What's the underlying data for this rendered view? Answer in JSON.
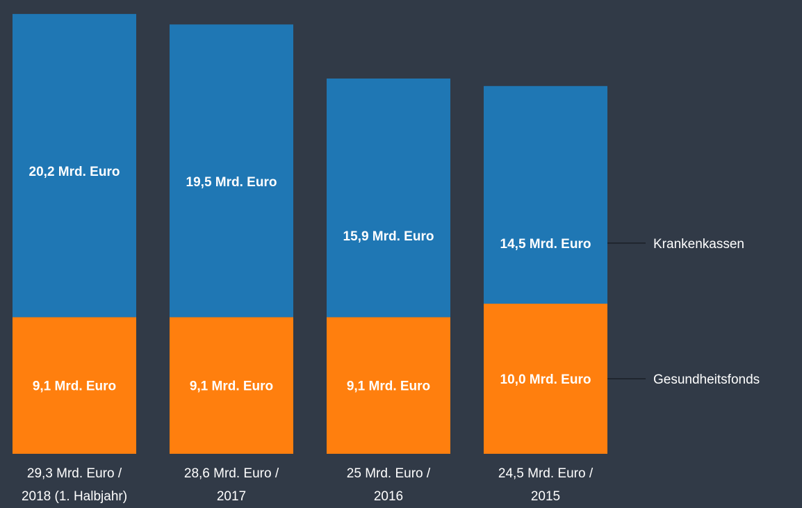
{
  "chart_data": {
    "type": "bar",
    "stacked": true,
    "categories": [
      [
        "29,3 Mrd. Euro /",
        "2018 (1. Halbjahr)"
      ],
      [
        "28,6 Mrd. Euro /",
        "2017"
      ],
      [
        "25 Mrd. Euro /",
        "2016"
      ],
      [
        "24,5 Mrd. Euro /",
        "2015"
      ]
    ],
    "series": [
      {
        "name": "Gesundheitsfonds",
        "color": "#ff7f0e",
        "values": [
          9.1,
          9.1,
          9.1,
          10.0
        ],
        "labels": [
          "9,1 Mrd. Euro",
          "9,1 Mrd. Euro",
          "9,1 Mrd. Euro",
          "10,0 Mrd. Euro"
        ]
      },
      {
        "name": "Krankenkassen",
        "color": "#1f77b4",
        "values": [
          20.2,
          19.5,
          15.9,
          14.5
        ],
        "labels": [
          "20,2 Mrd. Euro",
          "19,5 Mrd. Euro",
          "15,9 Mrd. Euro",
          "14,5 Mrd. Euro"
        ]
      }
    ],
    "legend_placement": "right, aligned with last bar",
    "grid": false,
    "background": "#313a47"
  }
}
